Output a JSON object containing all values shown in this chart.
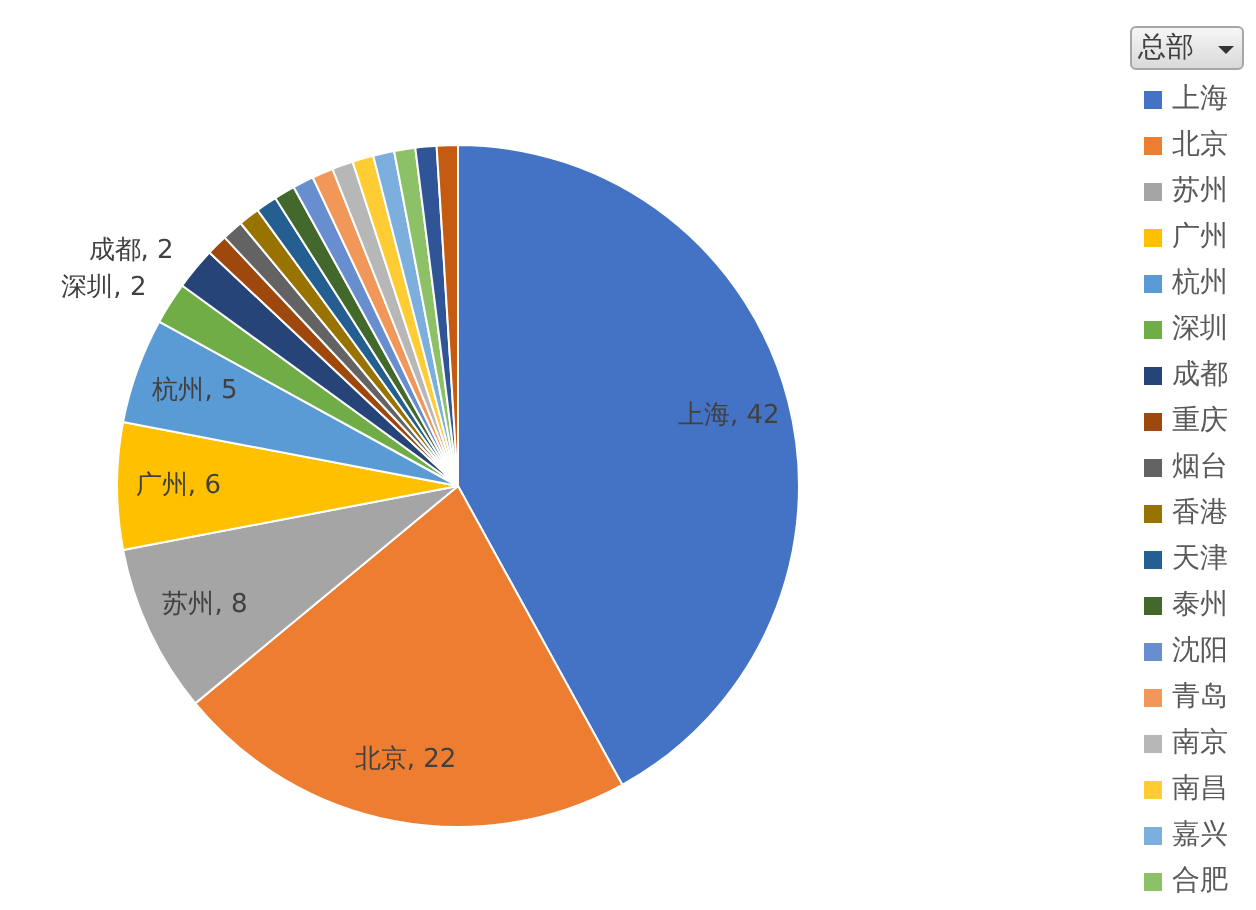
{
  "chart_data": {
    "type": "pie",
    "legend_title": "总部",
    "legend": "right",
    "categories": [
      "上海",
      "北京",
      "苏州",
      "广州",
      "杭州",
      "深圳",
      "成都",
      "重庆",
      "烟台",
      "香港",
      "天津",
      "泰州",
      "沈阳",
      "青岛",
      "南京",
      "南昌",
      "嘉兴",
      "合肥",
      null,
      null
    ],
    "values": [
      42,
      22,
      8,
      6,
      5,
      2,
      2,
      1,
      1,
      1,
      1,
      1,
      1,
      1,
      1,
      1,
      1,
      1,
      1,
      1
    ],
    "colors": [
      "#4472c4",
      "#ed7d31",
      "#a5a5a5",
      "#ffc000",
      "#5b9bd5",
      "#70ad47",
      "#264478",
      "#9e480e",
      "#636363",
      "#997300",
      "#255e91",
      "#43682b",
      "#698ed0",
      "#f1975a",
      "#b7b7b7",
      "#ffcd33",
      "#7cafdd",
      "#8cc168",
      "#2f5597",
      "#c55a11"
    ],
    "value_labels": [
      "上海, 42",
      "北京, 22",
      "苏州, 8",
      "广州, 6",
      "杭州, 5",
      "深圳, 2",
      "成都, 2",
      null,
      null,
      null,
      null,
      null,
      null,
      null,
      null,
      null,
      null,
      null,
      null,
      null
    ]
  }
}
